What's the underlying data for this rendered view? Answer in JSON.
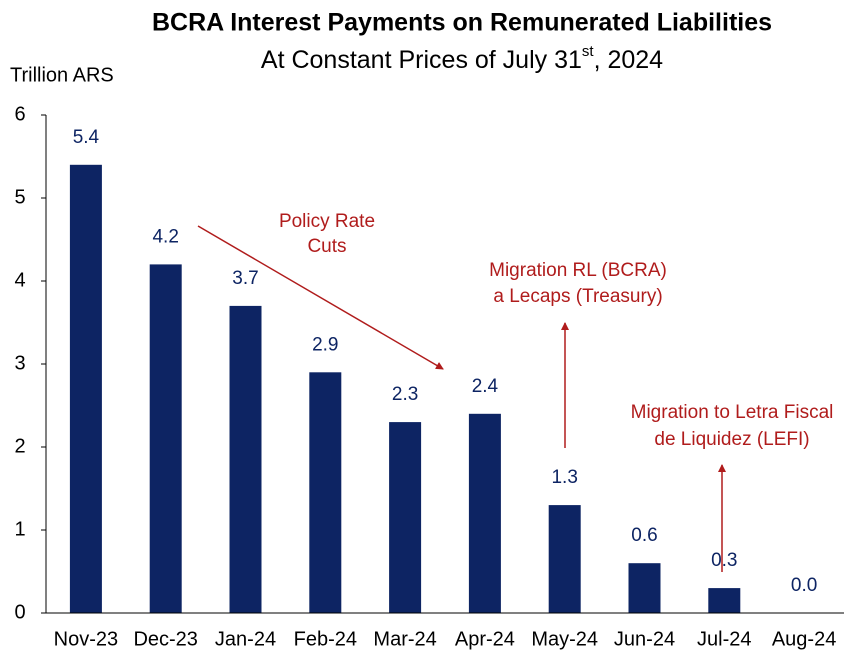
{
  "chart_data": {
    "type": "bar",
    "title": "BCRA Interest Payments on Remunerated Liabilities",
    "subtitle": [
      "At Constant Prices of July 31",
      "st",
      ", 2024"
    ],
    "y_label": "Trillion ARS",
    "categories": [
      "Nov-23",
      "Dec-23",
      "Jan-24",
      "Feb-24",
      "Mar-24",
      "Apr-24",
      "May-24",
      "Jun-24",
      "Jul-24",
      "Aug-24"
    ],
    "values": [
      5.4,
      4.2,
      3.7,
      2.9,
      2.3,
      2.4,
      1.3,
      0.6,
      0.3,
      0
    ],
    "value_labels": [
      "5.4",
      "4.2",
      "3.7",
      "2.9",
      "2.3",
      "2.4",
      "1.3",
      "0.6",
      "0.3",
      "0.0"
    ],
    "color": "#0d2463",
    "ylim": [
      0,
      6
    ],
    "yticks": [
      0,
      1,
      2,
      3,
      4,
      5,
      6
    ],
    "grid": false,
    "annotations": [
      {
        "lines": [
          "Policy Rate",
          "Cuts"
        ]
      },
      {
        "lines": [
          "Migration RL (BCRA)",
          "a Lecaps (Treasury)"
        ]
      },
      {
        "lines": [
          "Migration to Letra Fiscal",
          "de Liquidez (LEFI)"
        ]
      }
    ]
  }
}
